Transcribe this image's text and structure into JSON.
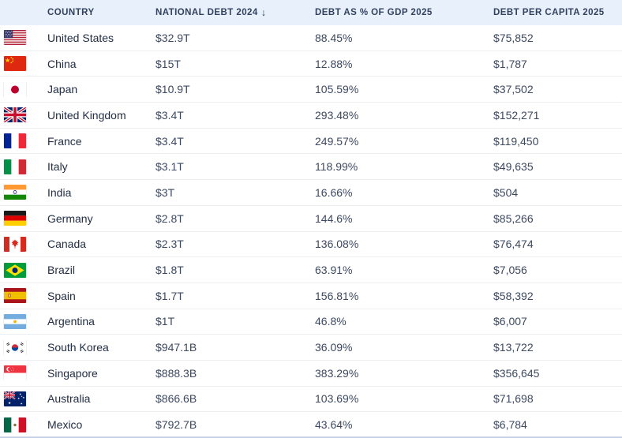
{
  "chart_data": {
    "type": "table",
    "columns": [
      "COUNTRY",
      "NATIONAL DEBT 2024",
      "DEBT AS % OF GDP 2025",
      "DEBT PER CAPITA 2025"
    ],
    "sort": {
      "column": "NATIONAL DEBT 2024",
      "direction": "descending",
      "arrow": "↓"
    },
    "rows": [
      {
        "flag": "us",
        "country": "United States",
        "national_debt_2024": "$32.9T",
        "debt_pct_gdp_2025": "88.45%",
        "debt_per_capita_2025": "$75,852"
      },
      {
        "flag": "cn",
        "country": "China",
        "national_debt_2024": "$15T",
        "debt_pct_gdp_2025": "12.88%",
        "debt_per_capita_2025": "$1,787"
      },
      {
        "flag": "jp",
        "country": "Japan",
        "national_debt_2024": "$10.9T",
        "debt_pct_gdp_2025": "105.59%",
        "debt_per_capita_2025": "$37,502"
      },
      {
        "flag": "gb",
        "country": "United Kingdom",
        "national_debt_2024": "$3.4T",
        "debt_pct_gdp_2025": "293.48%",
        "debt_per_capita_2025": "$152,271"
      },
      {
        "flag": "fr",
        "country": "France",
        "national_debt_2024": "$3.4T",
        "debt_pct_gdp_2025": "249.57%",
        "debt_per_capita_2025": "$119,450"
      },
      {
        "flag": "it",
        "country": "Italy",
        "national_debt_2024": "$3.1T",
        "debt_pct_gdp_2025": "118.99%",
        "debt_per_capita_2025": "$49,635"
      },
      {
        "flag": "in",
        "country": "India",
        "national_debt_2024": "$3T",
        "debt_pct_gdp_2025": "16.66%",
        "debt_per_capita_2025": "$504"
      },
      {
        "flag": "de",
        "country": "Germany",
        "national_debt_2024": "$2.8T",
        "debt_pct_gdp_2025": "144.6%",
        "debt_per_capita_2025": "$85,266"
      },
      {
        "flag": "ca",
        "country": "Canada",
        "national_debt_2024": "$2.3T",
        "debt_pct_gdp_2025": "136.08%",
        "debt_per_capita_2025": "$76,474"
      },
      {
        "flag": "br",
        "country": "Brazil",
        "national_debt_2024": "$1.8T",
        "debt_pct_gdp_2025": "63.91%",
        "debt_per_capita_2025": "$7,056"
      },
      {
        "flag": "es",
        "country": "Spain",
        "national_debt_2024": "$1.7T",
        "debt_pct_gdp_2025": "156.81%",
        "debt_per_capita_2025": "$58,392"
      },
      {
        "flag": "ar",
        "country": "Argentina",
        "national_debt_2024": "$1T",
        "debt_pct_gdp_2025": "46.8%",
        "debt_per_capita_2025": "$6,007"
      },
      {
        "flag": "kr",
        "country": "South Korea",
        "national_debt_2024": "$947.1B",
        "debt_pct_gdp_2025": "36.09%",
        "debt_per_capita_2025": "$13,722"
      },
      {
        "flag": "sg",
        "country": "Singapore",
        "national_debt_2024": "$888.3B",
        "debt_pct_gdp_2025": "383.29%",
        "debt_per_capita_2025": "$356,645"
      },
      {
        "flag": "au",
        "country": "Australia",
        "national_debt_2024": "$866.6B",
        "debt_pct_gdp_2025": "103.69%",
        "debt_per_capita_2025": "$71,698"
      },
      {
        "flag": "mx",
        "country": "Mexico",
        "national_debt_2024": "$792.7B",
        "debt_pct_gdp_2025": "43.64%",
        "debt_per_capita_2025": "$6,784"
      }
    ]
  },
  "colors": {
    "header_bg": "#e8f1fb",
    "header_text": "#32415f",
    "country_text": "#222e44",
    "value_text": "#3d4960",
    "row_border": "#eceef2"
  }
}
